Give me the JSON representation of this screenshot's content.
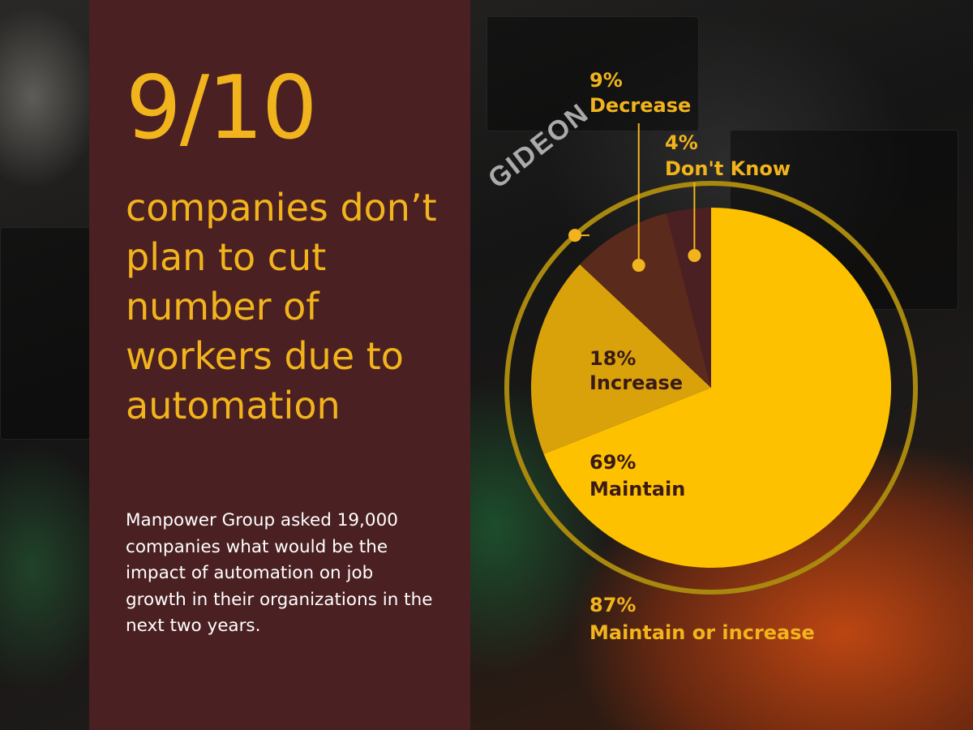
{
  "stat": "9/10",
  "headline": "companies don’t plan to cut number of workers due to automation",
  "description": "Manpower Group asked 19,000 companies what would be the impact of automation on job growth in their organizations in the next two years.",
  "brand_text": "GIDEON",
  "colors": {
    "panel": "#4a2022",
    "accent": "#f2b41c",
    "maintain": "#fec100",
    "increase": "#d9a20a",
    "decrease": "#5a2a1c",
    "dont_know": "#4a2022",
    "ring": "#a8880e",
    "dark_label": "#3a1a16"
  },
  "chart_data": {
    "type": "pie",
    "start_angle_deg": 0,
    "direction": "clockwise",
    "slices": [
      {
        "key": "maintain",
        "label": "Maintain",
        "value": 69,
        "value_text": "69%"
      },
      {
        "key": "increase",
        "label": "Increase",
        "value": 18,
        "value_text": "18%"
      },
      {
        "key": "decrease",
        "label": "Decrease",
        "value": 9,
        "value_text": "9%"
      },
      {
        "key": "dont_know",
        "label": "Don't Know",
        "value": 4,
        "value_text": "4%"
      }
    ],
    "ring_annotation": {
      "value": 87,
      "value_text": "87%",
      "label": "Maintain or increase"
    }
  }
}
